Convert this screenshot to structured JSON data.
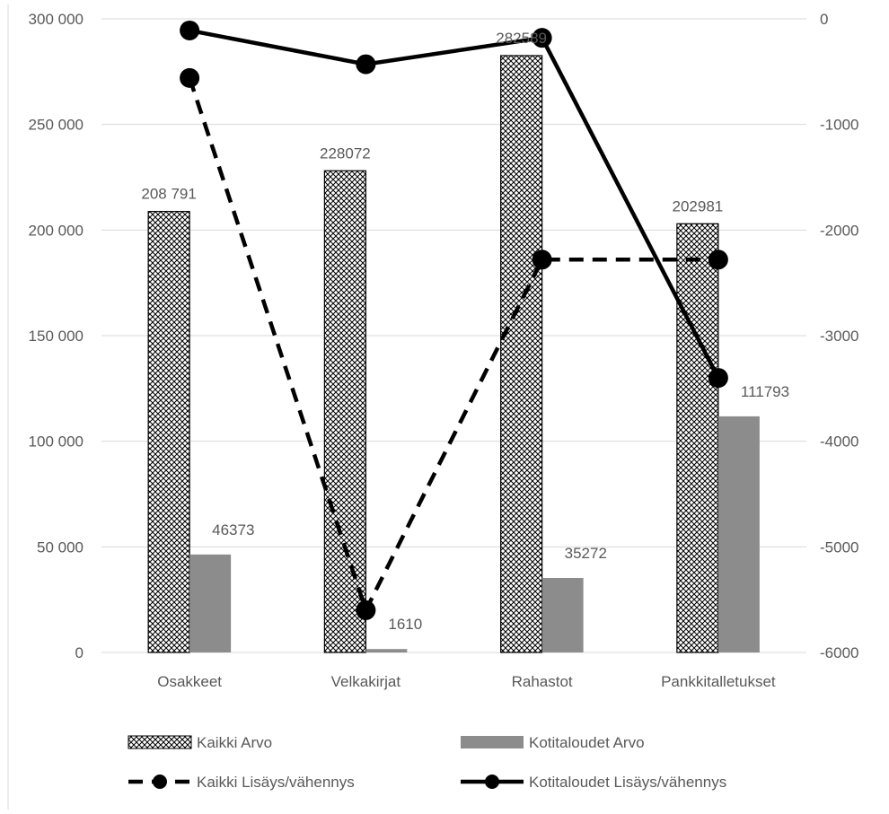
{
  "chart_data": {
    "type": "bar",
    "categories": [
      "Osakkeet",
      "Velkakirjat",
      "Rahastot",
      "Pankkitalletukset"
    ],
    "series": [
      {
        "name": "Kaikki Arvo",
        "kind": "bar",
        "axis": "left",
        "pattern": "crosshatch",
        "values": [
          208791,
          228072,
          282589,
          202981
        ],
        "labels": [
          "208 791",
          "228072",
          "282589",
          "202981"
        ]
      },
      {
        "name": "Kotitaloudet Arvo",
        "kind": "bar",
        "axis": "left",
        "color": "#8c8c8c",
        "values": [
          46373,
          1610,
          35272,
          111793
        ],
        "labels": [
          "46373",
          "1610",
          "35272",
          "111793"
        ]
      },
      {
        "name": "Kaikki Lisäys/vähennys",
        "kind": "line",
        "axis": "right",
        "style": "dashed",
        "color": "#000000",
        "values": [
          -560,
          -5600,
          -2280,
          -2280
        ]
      },
      {
        "name": "Kotitaloudet Lisäys/vähennys",
        "kind": "line",
        "axis": "right",
        "style": "solid",
        "color": "#000000",
        "values": [
          -110,
          -430,
          -180,
          -3400
        ]
      }
    ],
    "y_left": {
      "min": 0,
      "max": 300000,
      "ticks": [
        "0",
        "50 000",
        "100 000",
        "150 000",
        "200 000",
        "250 000",
        "300 000"
      ],
      "tick_values": [
        0,
        50000,
        100000,
        150000,
        200000,
        250000,
        300000
      ]
    },
    "y_right": {
      "min": -6000,
      "max": 0,
      "ticks": [
        "-6000",
        "-5000",
        "-4000",
        "-3000",
        "-2000",
        "-1000",
        "0"
      ],
      "tick_values": [
        -6000,
        -5000,
        -4000,
        -3000,
        -2000,
        -1000,
        0
      ]
    },
    "grid": true,
    "legend_position": "bottom"
  },
  "colors": {
    "grid": "#d9d9d9",
    "text": "#595959",
    "bar_gray": "#8c8c8c",
    "line": "#000000"
  }
}
